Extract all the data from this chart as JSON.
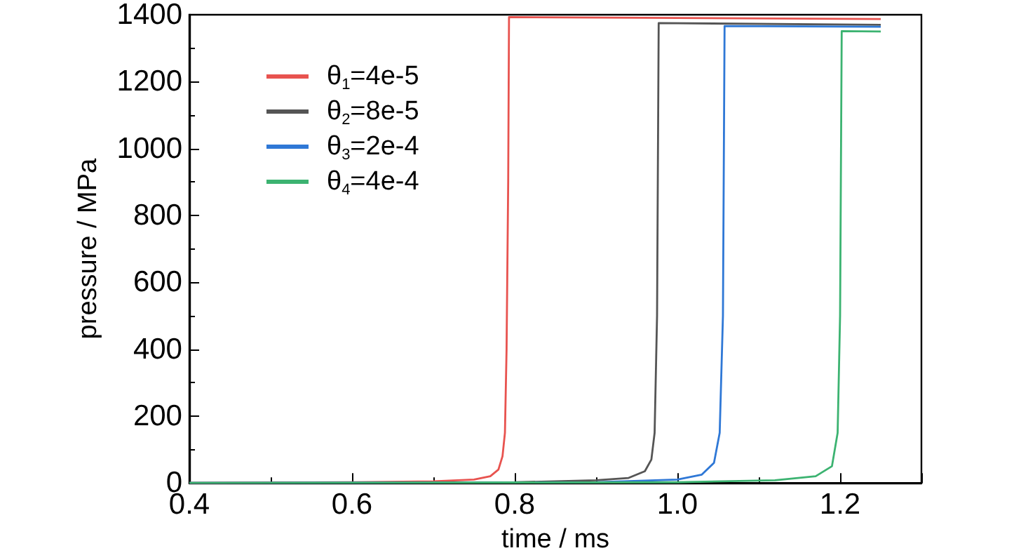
{
  "chart_data": {
    "type": "line",
    "xlabel": "time / ms",
    "ylabel": "pressure / MPa",
    "xlim": [
      0.4,
      1.3
    ],
    "xticks": [
      {
        "value": 0.4,
        "label": "0.4"
      },
      {
        "value": 0.6,
        "label": "0.6"
      },
      {
        "value": 0.8,
        "label": "0.8"
      },
      {
        "value": 1.0,
        "label": "1.0"
      },
      {
        "value": 1.2,
        "label": "1.2"
      }
    ],
    "ylim": [
      0,
      1400
    ],
    "yticks": [
      0,
      200,
      400,
      600,
      800,
      1000,
      1200,
      1400
    ],
    "grid": false,
    "legend": "top left",
    "marker": "none",
    "line_style": "solid",
    "series": [
      {
        "name": "θ$_{1}$=4e-5",
        "color": "#e8534f",
        "x": [
          0.4,
          0.6,
          0.7,
          0.75,
          0.77,
          0.78,
          0.785,
          0.788,
          0.79,
          0.792,
          0.793,
          1.25
        ],
        "values": [
          0,
          2,
          5,
          10,
          20,
          40,
          80,
          150,
          400,
          900,
          1393,
          1387
        ]
      },
      {
        "name": "θ$_{2}$=8e-5",
        "color": "#555555",
        "x": [
          0.4,
          0.8,
          0.9,
          0.94,
          0.96,
          0.968,
          0.972,
          0.975,
          0.977,
          1.25
        ],
        "values": [
          0,
          2,
          8,
          15,
          35,
          70,
          150,
          500,
          1375,
          1370
        ]
      },
      {
        "name": "θ$_{3}$=2e-4",
        "color": "#2f78d6",
        "x": [
          0.4,
          0.9,
          1.0,
          1.03,
          1.045,
          1.052,
          1.056,
          1.058,
          1.25
        ],
        "values": [
          0,
          2,
          10,
          25,
          60,
          150,
          500,
          1366,
          1364
        ]
      },
      {
        "name": "θ$_{4}$=4e-4",
        "color": "#3cb371",
        "x": [
          0.4,
          1.0,
          1.12,
          1.17,
          1.19,
          1.197,
          1.2,
          1.202,
          1.25
        ],
        "values": [
          0,
          2,
          8,
          20,
          50,
          150,
          500,
          1351,
          1350
        ]
      }
    ]
  }
}
